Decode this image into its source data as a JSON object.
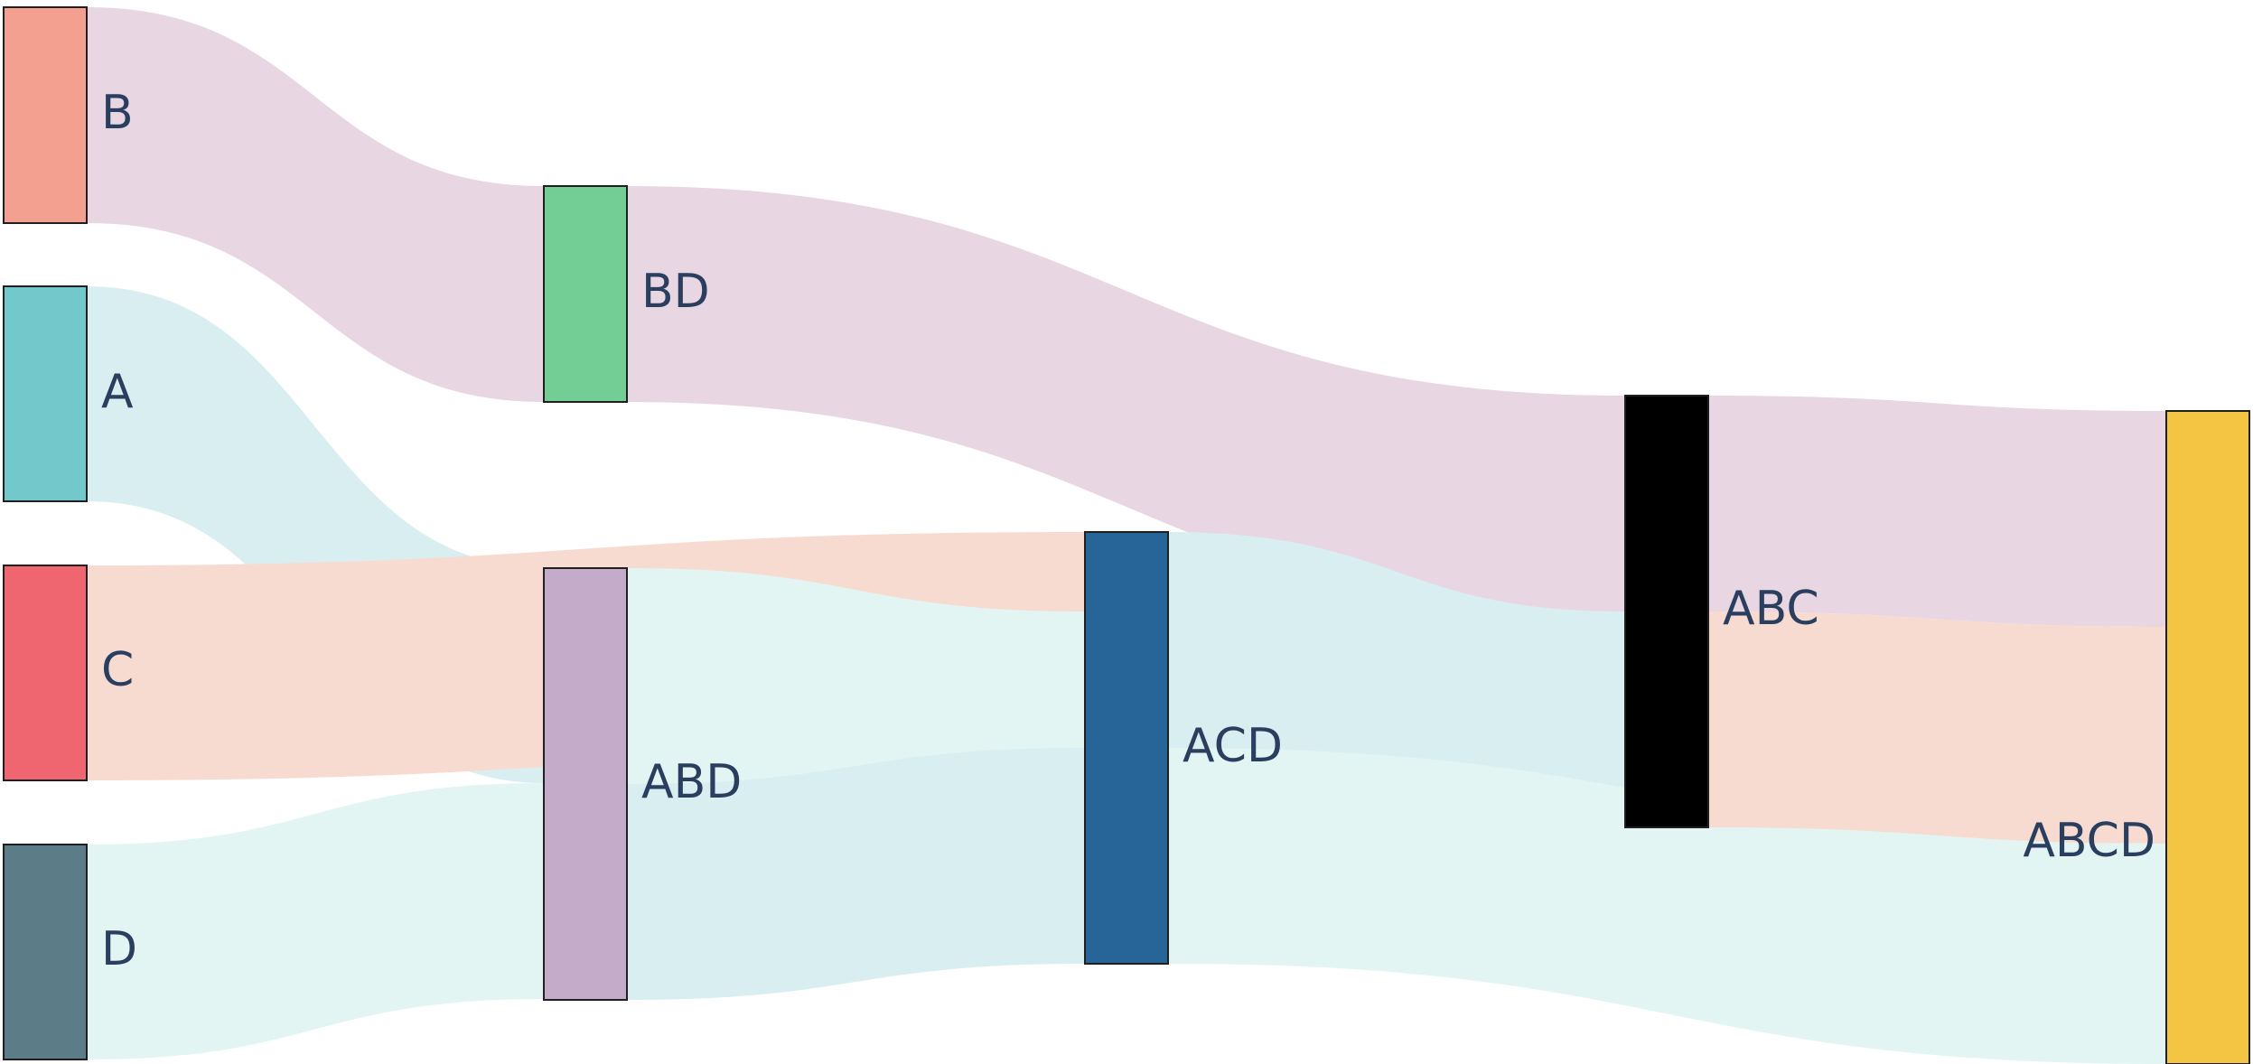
{
  "chart_data": {
    "type": "sankey",
    "nodes": [
      {
        "id": "B",
        "label": "B",
        "color": "#f4a090"
      },
      {
        "id": "A",
        "label": "A",
        "color": "#73c8cc"
      },
      {
        "id": "C",
        "label": "C",
        "color": "#ef6670"
      },
      {
        "id": "D",
        "label": "D",
        "color": "#5c7c87"
      },
      {
        "id": "BD",
        "label": "BD",
        "color": "#73ce96"
      },
      {
        "id": "ABD",
        "label": "ABD",
        "color": "#c4abc9"
      },
      {
        "id": "ACD",
        "label": "ACD",
        "color": "#276498"
      },
      {
        "id": "ABC",
        "label": "ABC",
        "color": "#000000"
      },
      {
        "id": "ABCD",
        "label": "ABCD",
        "color": "#f4c542"
      }
    ],
    "links": [
      {
        "source": "B",
        "target": "BD",
        "value": 1,
        "color": "#e8d6e2"
      },
      {
        "source": "A",
        "target": "ABD",
        "value": 1,
        "color": "#d9eef0"
      },
      {
        "source": "C",
        "target": "ACD",
        "value": 1,
        "color": "#f8dbd0"
      },
      {
        "source": "D",
        "target": "ABD",
        "value": 1,
        "color": "#e2f5f3"
      },
      {
        "source": "BD",
        "target": "ABC",
        "value": 1,
        "color": "#e8d6e2"
      },
      {
        "source": "ABD",
        "target": "ACD",
        "value": 1,
        "color": "#e2f5f3"
      },
      {
        "source": "ABD",
        "target": "ACD",
        "value": 1,
        "color": "#d9eef0"
      },
      {
        "source": "ACD",
        "target": "ABC",
        "value": 1,
        "color": "#d9eef0"
      },
      {
        "source": "ACD",
        "target": "ABCD",
        "value": 1,
        "color": "#e2f5f3"
      },
      {
        "source": "ACD",
        "target": "ABCD",
        "value": 1,
        "color": "#f8dbd0"
      },
      {
        "source": "ABC",
        "target": "ABCD",
        "value": 1,
        "color": "#e8d6e2"
      },
      {
        "source": "ABC",
        "target": "ABCD",
        "value": 1,
        "color": "#f8dbd0"
      },
      {
        "source": "ABC",
        "target": "ABCD",
        "value": 1,
        "color": "#d9eef0"
      }
    ]
  }
}
